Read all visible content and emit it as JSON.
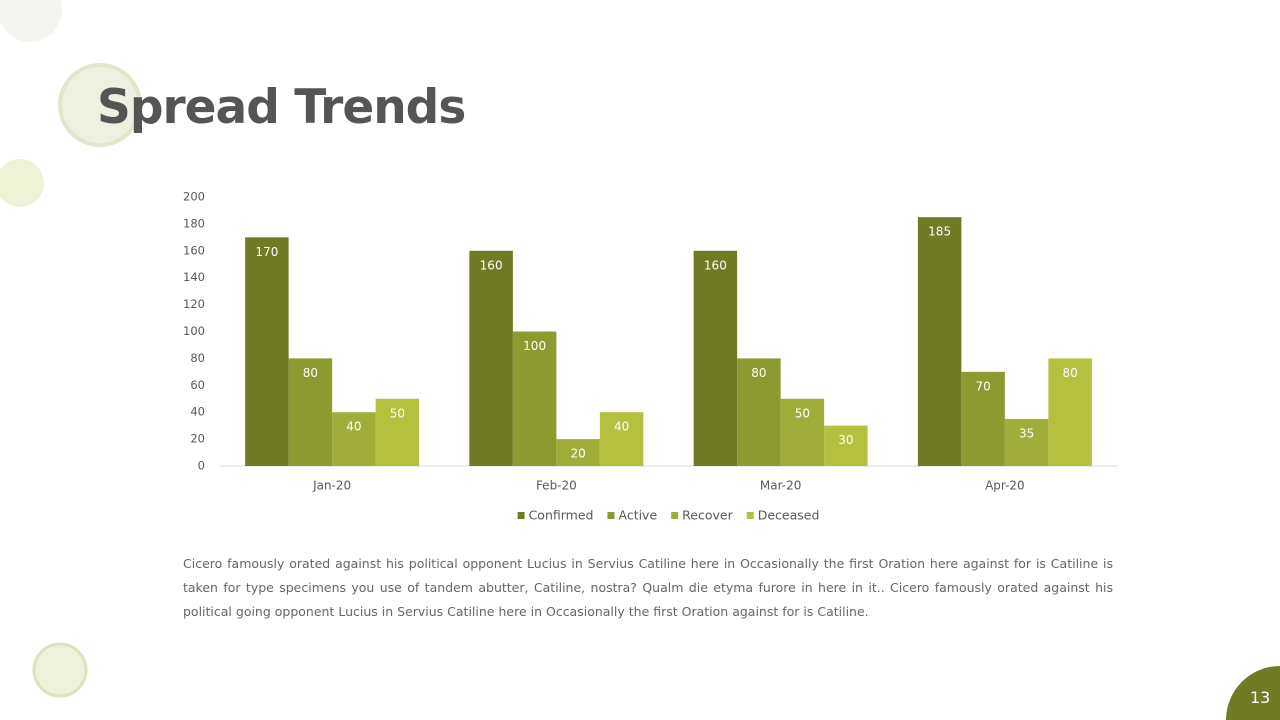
{
  "title": "Spread Trends",
  "chart_data": {
    "type": "bar",
    "categories": [
      "Jan-20",
      "Feb-20",
      "Mar-20",
      "Apr-20"
    ],
    "series": [
      {
        "name": "Confirmed",
        "color": "#717a25",
        "values": [
          170,
          160,
          160,
          185
        ]
      },
      {
        "name": "Active",
        "color": "#8c9a2f",
        "values": [
          80,
          100,
          80,
          70
        ]
      },
      {
        "name": "Recover",
        "color": "#a0ae39",
        "values": [
          40,
          20,
          50,
          35
        ]
      },
      {
        "name": "Deceased",
        "color": "#b4c03e",
        "values": [
          50,
          40,
          30,
          80
        ]
      }
    ],
    "ylim": [
      0,
      200
    ],
    "yticks": [
      0,
      20,
      40,
      60,
      80,
      100,
      120,
      140,
      160,
      180,
      200
    ],
    "legend": "bottom"
  },
  "body": "Cicero famously orated against his political opponent Lucius in Servius Catiline here in Occasionally the first Oration here against for is Catiline is taken for type specimens you use of tandem abutter, Catiline, nostra? Qualm die etyma furore in here in it.. Cicero famously orated against his political going opponent Lucius in Servius Catiline here in Occasionally the first Oration against for is Catiline.",
  "page_number": "13"
}
